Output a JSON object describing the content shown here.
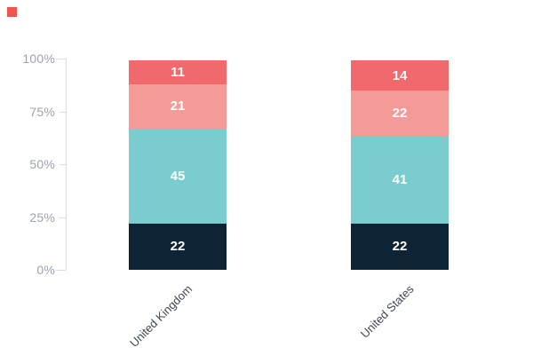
{
  "brand": {
    "mark_color": "#F2544F"
  },
  "chart_data": {
    "type": "bar",
    "stacked": true,
    "orientation": "vertical",
    "title": "",
    "categories": [
      "United Kingdom",
      "United States"
    ],
    "series_order": "bottom-to-top",
    "series": [
      {
        "color": "#0D2436",
        "values": [
          22,
          22
        ]
      },
      {
        "color": "#7BCCCF",
        "values": [
          45,
          41
        ]
      },
      {
        "color": "#F59B97",
        "values": [
          21,
          22
        ]
      },
      {
        "color": "#F0696C",
        "values": [
          11,
          14
        ]
      }
    ],
    "value_labels_shown": true,
    "value_label_color": "#FFFFFF",
    "yaxis": {
      "ticks": [
        "0%",
        "25%",
        "50%",
        "75%",
        "100%"
      ],
      "range": [
        0,
        100
      ],
      "line_color": "#D8DDE2",
      "label_color": "#9AA3B1"
    },
    "xaxis": {
      "label_rotation_deg": -45,
      "label_color": "#3E4653"
    },
    "grid": false,
    "legend": "none"
  }
}
